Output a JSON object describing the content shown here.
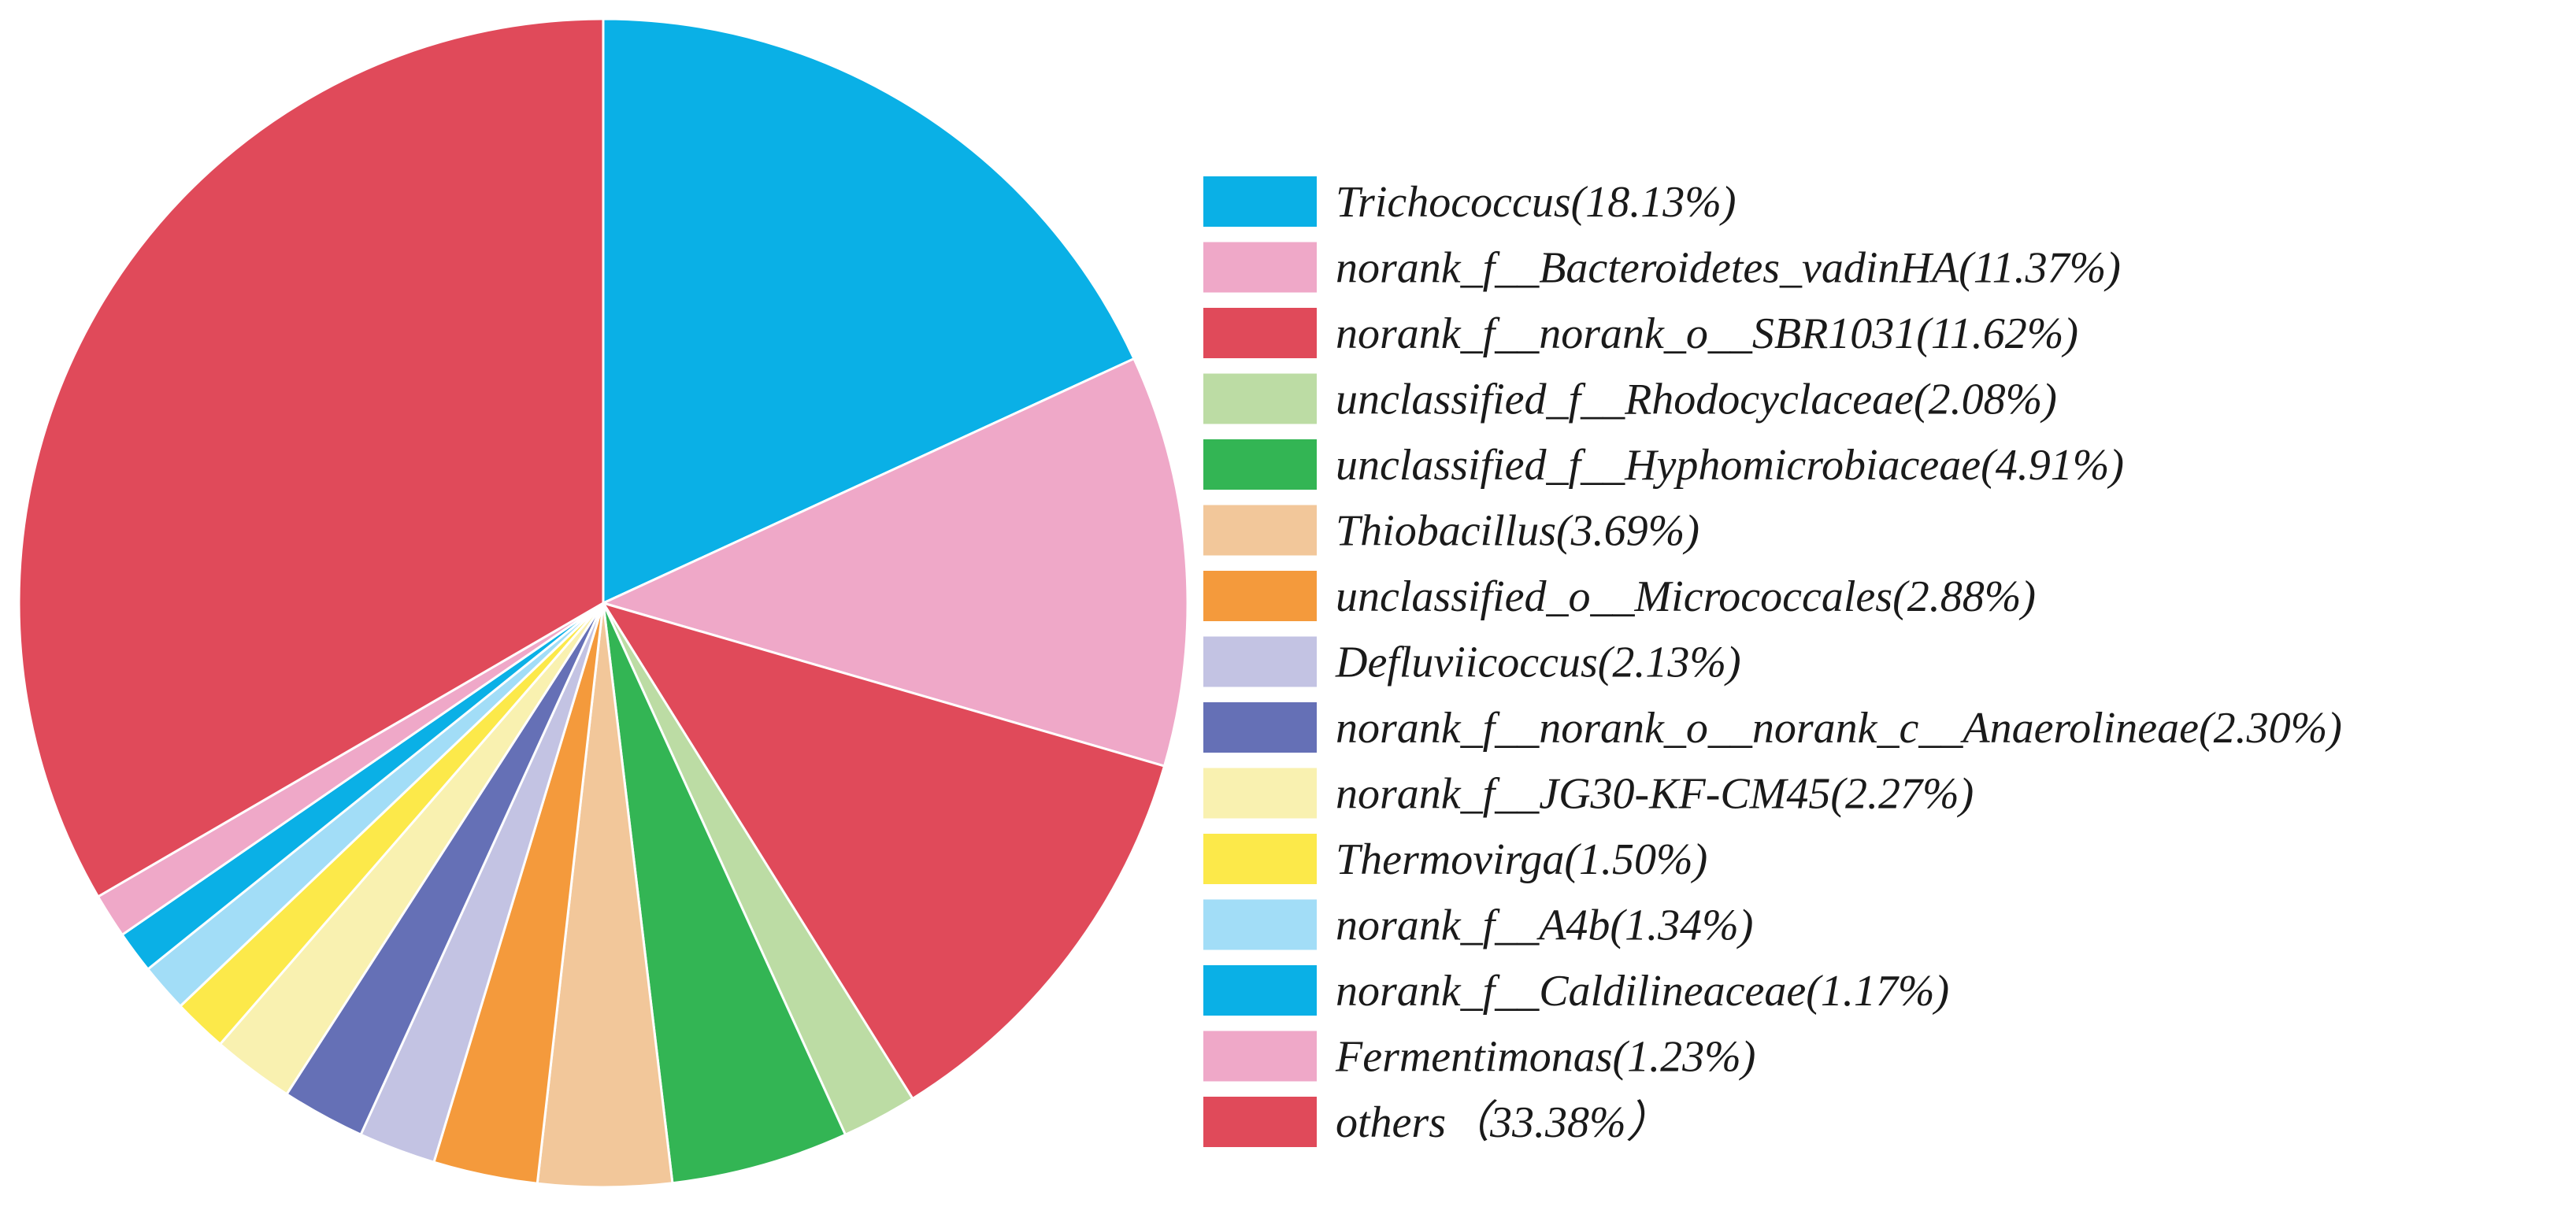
{
  "chart_data": {
    "type": "pie",
    "start_angle_deg": 0,
    "direction": "clockwise",
    "legend_position": "right",
    "slice_border_color": "#ffffff",
    "slices": [
      {
        "label": "Trichococcus(18.13%)",
        "value": 18.13,
        "color": "#0AB0E6"
      },
      {
        "label": "norank_f__Bacteroidetes_vadinHA(11.37%)",
        "value": 11.37,
        "color": "#EFA8C8"
      },
      {
        "label": "norank_f__norank_o__SBR1031(11.62%)",
        "value": 11.62,
        "color": "#E04A5A"
      },
      {
        "label": "unclassified_f__Rhodocyclaceae(2.08%)",
        "value": 2.08,
        "color": "#BCDCA4"
      },
      {
        "label": "unclassified_f__Hyphomicrobiaceae(4.91%)",
        "value": 4.91,
        "color": "#33B554"
      },
      {
        "label": "Thiobacillus(3.69%)",
        "value": 3.69,
        "color": "#F2C79A"
      },
      {
        "label": "unclassified_o__Micrococcales(2.88%)",
        "value": 2.88,
        "color": "#F49A3C"
      },
      {
        "label": "Defluviicoccus(2.13%)",
        "value": 2.13,
        "color": "#C3C3E3"
      },
      {
        "label": "norank_f__norank_o__norank_c__Anaerolineae(2.30%)",
        "value": 2.3,
        "color": "#6570B6"
      },
      {
        "label": "norank_f__JG30-KF-CM45(2.27%)",
        "value": 2.27,
        "color": "#F9F1B0"
      },
      {
        "label": "Thermovirga(1.50%)",
        "value": 1.5,
        "color": "#FCE94A"
      },
      {
        "label": "norank_f__A4b(1.34%)",
        "value": 1.34,
        "color": "#A2DDF7"
      },
      {
        "label": "norank_f__Caldilineaceae(1.17%)",
        "value": 1.17,
        "color": "#0AB0E6"
      },
      {
        "label": "Fermentimonas(1.23%)",
        "value": 1.23,
        "color": "#EFA8C8"
      },
      {
        "label": "others（33.38%）",
        "value": 33.38,
        "color": "#E04A5A"
      }
    ]
  }
}
